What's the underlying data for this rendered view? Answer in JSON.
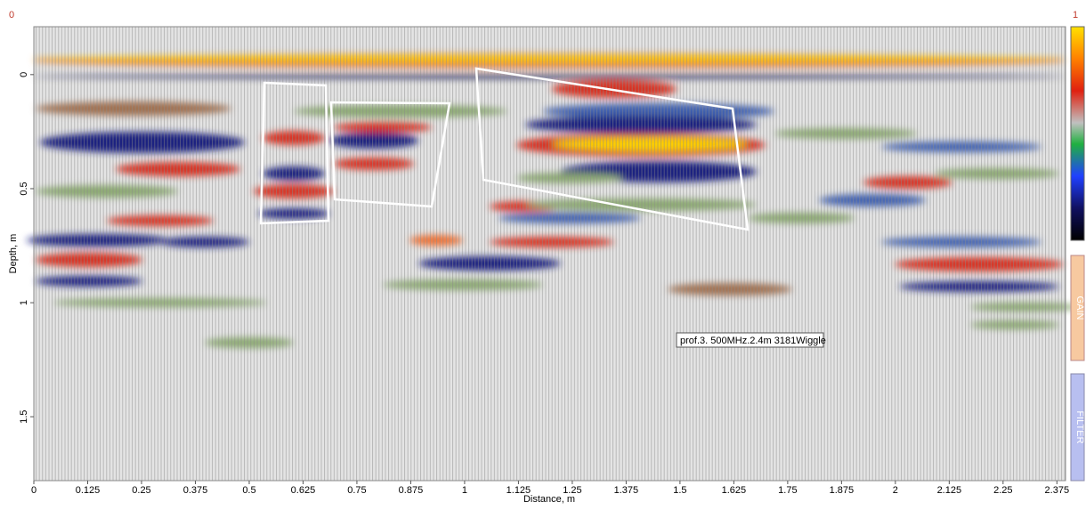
{
  "scale": {
    "min_label": "0",
    "max_label": "1"
  },
  "axes": {
    "x": {
      "label": "Distance, m",
      "lim": [
        0,
        2.395
      ],
      "ticks": [
        0,
        0.125,
        0.25,
        0.375,
        0.5,
        0.625,
        0.75,
        0.875,
        1,
        1.125,
        1.25,
        1.375,
        1.5,
        1.625,
        1.75,
        1.875,
        2,
        2.125,
        2.25,
        2.375
      ]
    },
    "y": {
      "label": "Depth, m",
      "lim": [
        -0.21,
        1.78
      ],
      "ticks": [
        0,
        0.5,
        1,
        1.5
      ]
    }
  },
  "annotation": "prof.3. 500MHz.2.4m 3181Wiggle",
  "side_buttons": [
    "GAIN",
    "FILTER"
  ]
}
